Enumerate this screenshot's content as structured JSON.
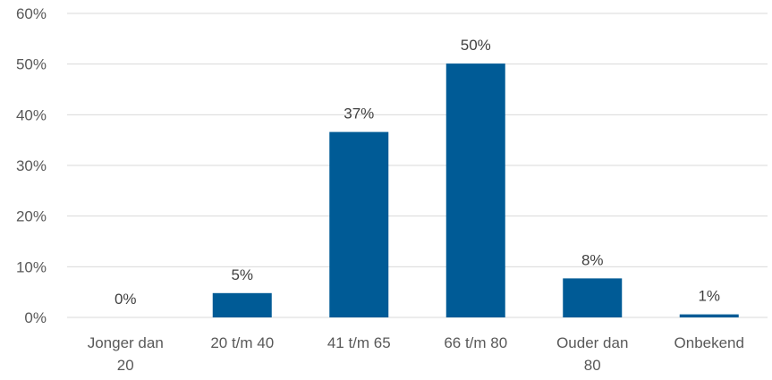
{
  "chart_data": {
    "type": "bar",
    "categories": [
      [
        "Jonger dan",
        "20"
      ],
      [
        "20 t/m 40"
      ],
      [
        "41 t/m 65"
      ],
      [
        "66 t/m 80"
      ],
      [
        "Ouder dan",
        "80"
      ],
      [
        "Onbekend"
      ]
    ],
    "values": [
      0,
      4.8,
      36.6,
      50.1,
      7.7,
      0.6
    ],
    "data_labels": [
      "0%",
      "5%",
      "37%",
      "50%",
      "8%",
      "1%"
    ],
    "y_ticks": [
      "0%",
      "10%",
      "20%",
      "30%",
      "40%",
      "50%",
      "60%"
    ],
    "ylim": [
      0,
      60
    ],
    "grid": true,
    "legend": "none",
    "colors": {
      "bar": "#005b96",
      "grid": "#d9d9d9",
      "text": "#595959"
    }
  }
}
